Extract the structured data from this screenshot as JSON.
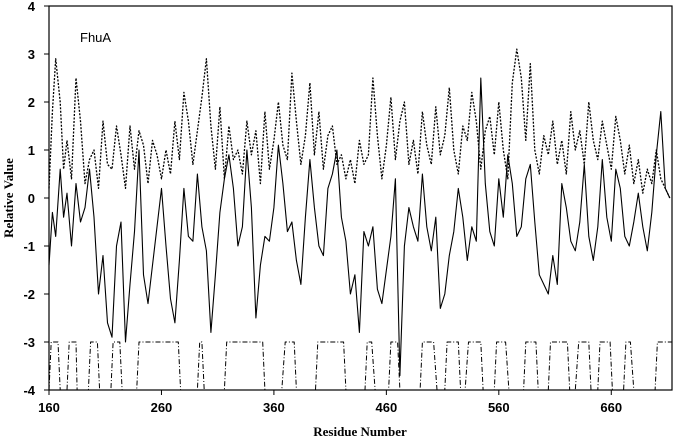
{
  "chart_data": {
    "type": "line",
    "title": "",
    "annotation": "FhuA",
    "xlabel": "Residue Number",
    "ylabel": "Relative Value",
    "xlim": [
      160,
      714
    ],
    "ylim": [
      -4,
      4
    ],
    "x_ticks": [
      160,
      260,
      360,
      460,
      560,
      660
    ],
    "y_ticks": [
      4,
      3,
      2,
      1,
      0,
      -1,
      -2,
      -3,
      -4
    ],
    "grid": false,
    "legend": "none",
    "series": [
      {
        "style": "dotted",
        "x": [
          160,
          163,
          166,
          170,
          173,
          176,
          180,
          184,
          188,
          192,
          196,
          200,
          204,
          208,
          212,
          216,
          220,
          224,
          228,
          232,
          236,
          240,
          244,
          248,
          252,
          256,
          260,
          264,
          268,
          272,
          276,
          280,
          284,
          288,
          292,
          296,
          300,
          304,
          308,
          312,
          316,
          320,
          324,
          328,
          332,
          336,
          340,
          344,
          348,
          352,
          356,
          360,
          364,
          368,
          372,
          376,
          380,
          384,
          388,
          392,
          396,
          400,
          404,
          408,
          412,
          416,
          420,
          424,
          428,
          432,
          436,
          440,
          444,
          448,
          452,
          456,
          460,
          464,
          468,
          472,
          476,
          480,
          484,
          488,
          492,
          496,
          500,
          504,
          508,
          512,
          516,
          520,
          524,
          528,
          532,
          536,
          540,
          544,
          548,
          552,
          556,
          560,
          564,
          568,
          572,
          576,
          580,
          584,
          588,
          592,
          596,
          600,
          604,
          608,
          612,
          616,
          620,
          624,
          628,
          632,
          636,
          640,
          644,
          648,
          652,
          656,
          660,
          664,
          668,
          672,
          676,
          680,
          684,
          688,
          692,
          696,
          700,
          704,
          708,
          712
        ],
        "y": [
          0.2,
          1.8,
          2.9,
          2.0,
          0.6,
          1.2,
          0.4,
          2.5,
          1.6,
          0.3,
          0.8,
          1.0,
          0.2,
          1.6,
          0.7,
          0.6,
          1.5,
          0.9,
          0.2,
          1.5,
          0.6,
          1.4,
          1.1,
          0.3,
          1.2,
          0.9,
          0.4,
          1.0,
          0.5,
          1.6,
          0.8,
          2.2,
          1.6,
          0.7,
          1.4,
          2.1,
          2.9,
          1.5,
          0.6,
          1.9,
          0.4,
          1.5,
          0.8,
          1.0,
          0.5,
          1.6,
          0.9,
          1.4,
          0.3,
          1.8,
          0.6,
          1.2,
          2.0,
          1.1,
          0.8,
          2.6,
          1.6,
          0.7,
          1.3,
          2.4,
          0.9,
          1.8,
          0.6,
          1.3,
          1.5,
          0.7,
          0.9,
          0.4,
          0.8,
          0.3,
          1.2,
          0.7,
          0.9,
          2.5,
          1.3,
          0.4,
          1.1,
          2.1,
          0.8,
          1.6,
          2.0,
          0.7,
          1.2,
          0.5,
          1.8,
          1.1,
          0.7,
          1.9,
          0.9,
          1.3,
          2.3,
          1.0,
          0.5,
          1.5,
          1.2,
          2.2,
          1.6,
          0.6,
          1.4,
          1.7,
          0.9,
          2.0,
          1.0,
          0.4,
          2.4,
          3.1,
          2.5,
          1.2,
          2.8,
          1.0,
          0.5,
          1.3,
          0.9,
          1.6,
          0.7,
          1.2,
          0.5,
          1.8,
          1.0,
          1.4,
          0.7,
          2.0,
          1.2,
          0.8,
          1.6,
          1.1,
          0.6,
          1.7,
          1.2,
          0.5,
          1.1,
          0.3,
          0.8,
          0.1,
          0.6,
          0.3,
          1.0,
          0.4,
          0.2,
          0.0
        ]
      },
      {
        "style": "solid",
        "x": [
          160,
          163,
          166,
          170,
          173,
          176,
          180,
          184,
          188,
          192,
          196,
          200,
          204,
          208,
          212,
          216,
          220,
          224,
          228,
          232,
          236,
          240,
          244,
          248,
          252,
          256,
          260,
          264,
          268,
          272,
          276,
          280,
          284,
          288,
          292,
          296,
          300,
          304,
          308,
          312,
          316,
          320,
          324,
          328,
          332,
          336,
          340,
          344,
          348,
          352,
          356,
          360,
          364,
          368,
          372,
          376,
          380,
          384,
          388,
          392,
          396,
          400,
          404,
          408,
          412,
          416,
          420,
          424,
          428,
          432,
          436,
          440,
          444,
          448,
          452,
          456,
          460,
          464,
          468,
          472,
          476,
          480,
          484,
          488,
          492,
          496,
          500,
          504,
          508,
          512,
          516,
          520,
          524,
          528,
          532,
          536,
          540,
          544,
          548,
          552,
          556,
          560,
          564,
          568,
          572,
          576,
          580,
          584,
          588,
          592,
          596,
          600,
          604,
          608,
          612,
          616,
          620,
          624,
          628,
          632,
          636,
          640,
          644,
          648,
          652,
          656,
          660,
          664,
          668,
          672,
          676,
          680,
          684,
          688,
          692,
          696,
          700,
          704,
          708,
          712
        ],
        "y": [
          -1.4,
          -0.3,
          -0.8,
          0.6,
          -0.4,
          0.1,
          -1.0,
          0.3,
          -0.5,
          -0.2,
          0.6,
          -0.4,
          -2.0,
          -1.2,
          -2.6,
          -2.9,
          -1.0,
          -0.5,
          -3.0,
          -1.8,
          -0.7,
          1.0,
          -1.6,
          -2.2,
          -1.4,
          -0.6,
          0.2,
          -1.0,
          -2.1,
          -2.6,
          -1.3,
          0.2,
          -0.8,
          -0.9,
          0.5,
          -0.6,
          -1.1,
          -2.8,
          -1.6,
          -0.3,
          0.4,
          0.9,
          0.2,
          -1.0,
          -0.6,
          1.0,
          -0.2,
          -2.5,
          -1.4,
          -0.8,
          -0.9,
          -0.2,
          1.1,
          0.3,
          -0.7,
          -0.5,
          -1.3,
          -1.8,
          -0.4,
          0.8,
          -0.2,
          -1.0,
          -1.2,
          0.2,
          0.5,
          1.0,
          -0.4,
          -0.9,
          -2.0,
          -1.6,
          -2.8,
          -0.7,
          -1.0,
          -0.6,
          -1.9,
          -2.2,
          -1.5,
          -0.8,
          0.4,
          -3.7,
          -1.0,
          -0.2,
          -0.6,
          -0.9,
          0.5,
          -0.6,
          -1.1,
          -0.4,
          -2.3,
          -2.0,
          -1.2,
          -0.7,
          0.2,
          -0.4,
          -1.3,
          -0.6,
          -0.9,
          2.5,
          0.3,
          -0.7,
          -1.0,
          0.4,
          -0.4,
          0.9,
          0.3,
          -0.8,
          -0.6,
          0.4,
          0.7,
          -0.5,
          -1.6,
          -1.8,
          -2.0,
          -1.2,
          -1.8,
          0.3,
          -0.2,
          -0.9,
          -1.1,
          -0.5,
          0.7,
          -0.8,
          -1.3,
          -0.6,
          0.8,
          -0.4,
          -0.9,
          0.6,
          0.2,
          -0.8,
          -1.0,
          -0.5,
          0.1,
          -0.6,
          -1.1,
          -0.3,
          0.9,
          1.8,
          0.2,
          0.0
        ]
      },
      {
        "style": "dash-dot step",
        "x": [
          160,
          162,
          168,
          170,
          176,
          178,
          184,
          185,
          195,
          197,
          203,
          205,
          215,
          217,
          223,
          225,
          238,
          240,
          275,
          277,
          292,
          294,
          296,
          298,
          316,
          318,
          350,
          352,
          367,
          370,
          378,
          380,
          397,
          399,
          422,
          424,
          441,
          443,
          447,
          450,
          462,
          464,
          470,
          472,
          490,
          492,
          502,
          505,
          512,
          514,
          524,
          526,
          530,
          533,
          544,
          546,
          556,
          558,
          566,
          569,
          582,
          584,
          593,
          595,
          604,
          606,
          621,
          623,
          628,
          631,
          640,
          642,
          648,
          650,
          659,
          661,
          671,
          673,
          677,
          680,
          699,
          701,
          714
        ],
        "y": [
          -4,
          -3,
          -3,
          -4,
          -4,
          -3,
          -3,
          -4,
          -4,
          -3,
          -3,
          -4,
          -4,
          -3,
          -3,
          -4,
          -4,
          -3,
          -3,
          -4,
          -4,
          -3,
          -3,
          -4,
          -4,
          -3,
          -3,
          -4,
          -4,
          -3,
          -3,
          -4,
          -4,
          -3,
          -3,
          -4,
          -4,
          -3,
          -3,
          -4,
          -4,
          -3,
          -3,
          -4,
          -4,
          -3,
          -3,
          -4,
          -4,
          -3,
          -3,
          -4,
          -4,
          -3,
          -3,
          -4,
          -4,
          -3,
          -3,
          -4,
          -4,
          -3,
          -3,
          -4,
          -4,
          -3,
          -3,
          -4,
          -4,
          -3,
          -3,
          -4,
          -4,
          -3,
          -3,
          -4,
          -4,
          -3,
          -3,
          -4,
          -4,
          -3,
          -3
        ]
      }
    ]
  }
}
